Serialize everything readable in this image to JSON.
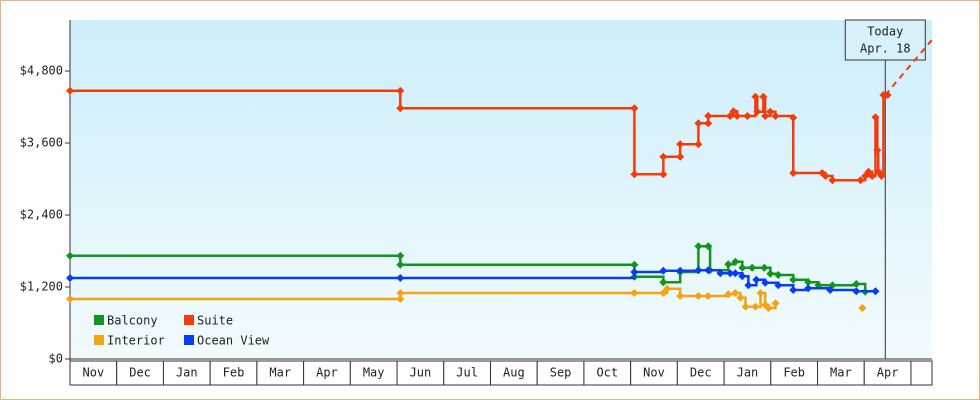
{
  "chart_data": {
    "type": "step-line",
    "xlim": [
      0,
      18.45
    ],
    "ylim": [
      0,
      5650
    ],
    "yticks": [
      {
        "value": 0,
        "label": "$0"
      },
      {
        "value": 1200,
        "label": "$1,200"
      },
      {
        "value": 2400,
        "label": "$2,400"
      },
      {
        "value": 3600,
        "label": "$3,600"
      },
      {
        "value": 4800,
        "label": "$4,800"
      }
    ],
    "xticks": [
      {
        "value": 0,
        "label": "Nov"
      },
      {
        "value": 1,
        "label": "Dec"
      },
      {
        "value": 2,
        "label": "Jan"
      },
      {
        "value": 3,
        "label": "Feb"
      },
      {
        "value": 4,
        "label": "Mar"
      },
      {
        "value": 5,
        "label": "Apr"
      },
      {
        "value": 6,
        "label": "May"
      },
      {
        "value": 7,
        "label": "Jun"
      },
      {
        "value": 8,
        "label": "Jul"
      },
      {
        "value": 9,
        "label": "Aug"
      },
      {
        "value": 10,
        "label": "Sep"
      },
      {
        "value": 11,
        "label": "Oct"
      },
      {
        "value": 12,
        "label": "Nov"
      },
      {
        "value": 13,
        "label": "Dec"
      },
      {
        "value": 14,
        "label": "Jan"
      },
      {
        "value": 15,
        "label": "Feb"
      },
      {
        "value": 16,
        "label": "Mar"
      },
      {
        "value": 17,
        "label": "Apr"
      },
      {
        "value": 18
      }
    ],
    "grid": false,
    "legend": "bottom-left",
    "series": [
      {
        "name": "Balcony",
        "color": "#11961b",
        "x": [
          0,
          7.07,
          7.07,
          12.08,
          12.08,
          12.7,
          13.06,
          13.45,
          13.66,
          13.7,
          14.09,
          14.24,
          14.39,
          14.6,
          14.86,
          14.99,
          15.16,
          15.48,
          15.8,
          16.02,
          16.32,
          16.83,
          17.02
        ],
        "values": [
          1720,
          1720,
          1570,
          1570,
          1370,
          1280,
          1450,
          1880,
          1880,
          1480,
          1580,
          1620,
          1520,
          1520,
          1520,
          1420,
          1400,
          1320,
          1280,
          1230,
          1230,
          1250,
          1120
        ]
      },
      {
        "name": "Suite",
        "color": "#f23c0c",
        "x": [
          0,
          7.07,
          7.07,
          12.08,
          12.08,
          12.7,
          12.7,
          13.06,
          13.06,
          13.45,
          13.45,
          13.66,
          13.66,
          14.13,
          14.2,
          14.28,
          14.5,
          14.67,
          14.71,
          14.84,
          14.88,
          14.99,
          15.1,
          15.48,
          15.48,
          16.1,
          16.17,
          16.32,
          16.92,
          17.02,
          17.09,
          17.17,
          17.24,
          17.28,
          17.3,
          17.37,
          17.41,
          17.5
        ],
        "values": [
          4470,
          4470,
          4180,
          4180,
          3080,
          3080,
          3370,
          3370,
          3580,
          3580,
          3930,
          3930,
          4050,
          4050,
          4130,
          4050,
          4050,
          4370,
          4120,
          4370,
          4050,
          4120,
          4050,
          4020,
          3100,
          3100,
          3050,
          2980,
          2980,
          3050,
          3120,
          3050,
          4030,
          3480,
          3120,
          3050,
          4400,
          4400
        ]
      },
      {
        "name": "Interior",
        "color": "#f5a40f",
        "x": [
          0,
          7.07,
          7.07,
          12.08,
          12.7,
          12.78,
          13.06,
          13.45,
          13.66,
          14.09,
          14.24,
          14.35,
          14.46,
          14.67,
          14.78,
          14.88,
          14.95,
          15.1,
          16.5,
          16.96
        ],
        "values": [
          1000,
          1000,
          1100,
          1100,
          1100,
          1170,
          1050,
          1050,
          1050,
          1080,
          1100,
          1020,
          870,
          870,
          1100,
          900,
          850,
          930,
          null,
          850
        ]
      },
      {
        "name": "Ocean View",
        "color": "#0a3cf2",
        "x": [
          0,
          7.07,
          12.08,
          12.7,
          13.06,
          13.45,
          13.66,
          13.92,
          14.13,
          14.24,
          14.39,
          14.52,
          14.69,
          14.88,
          15.16,
          15.48,
          15.8,
          16.27,
          16.83,
          17.24
        ],
        "values": [
          1350,
          1350,
          1450,
          1470,
          1470,
          1480,
          1480,
          1430,
          1430,
          1430,
          1380,
          1230,
          1320,
          1270,
          1230,
          1150,
          1180,
          1150,
          1130,
          1130
        ]
      }
    ],
    "today": {
      "x": 17.45,
      "text": [
        "Today",
        "Apr. 18"
      ]
    },
    "projection": {
      "x": [
        17.45,
        18.45
      ],
      "values": [
        4400,
        5320
      ],
      "color": "#f23c0c"
    }
  }
}
